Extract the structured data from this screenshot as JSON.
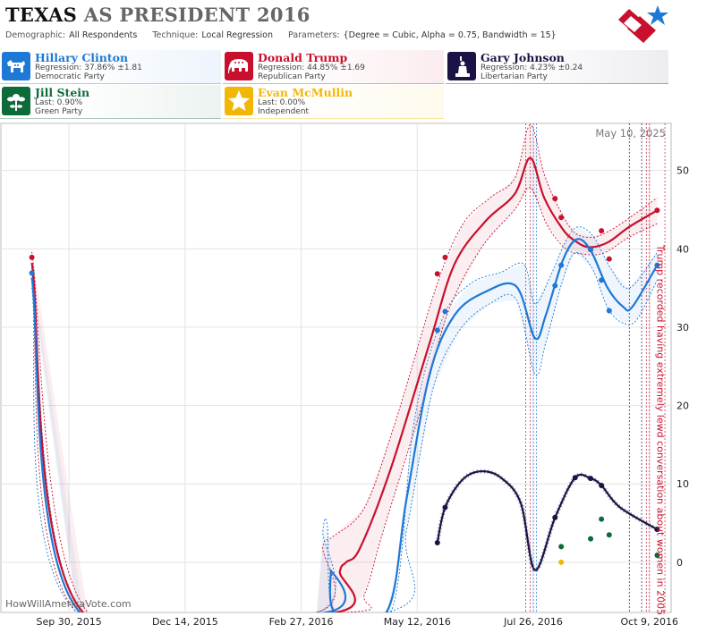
{
  "header": {
    "title_state": "TEXAS",
    "title_rest": "AS PRESIDENT 2016",
    "demographic_label": "Demographic:",
    "demographic_value": "All Respondents",
    "technique_label": "Technique:",
    "technique_value": "Local Regression",
    "parameters_label": "Parameters:",
    "parameters_value": "{Degree = Cubic, Alpha = 0.75, Bandwidth = 15}"
  },
  "candidates": [
    {
      "name": "Hillary Clinton",
      "stat": "Regression: 37.86% ±1.81",
      "party": "Democratic Party",
      "color": "#1e78d6",
      "icon": "donkey-icon"
    },
    {
      "name": "Donald Trump",
      "stat": "Regression: 44.85% ±1.69",
      "party": "Republican Party",
      "color": "#c8102e",
      "icon": "elephant-icon"
    },
    {
      "name": "Gary Johnson",
      "stat": "Regression: 4.23% ±0.24",
      "party": "Libertarian Party",
      "color": "#1a1446",
      "icon": "statue-of-liberty-icon"
    },
    {
      "name": "Jill Stein",
      "stat": "Last: 0.90%",
      "party": "Green Party",
      "color": "#0d6b3a",
      "icon": "flower-icon"
    },
    {
      "name": "Evan McMullin",
      "stat": "Last: 0.00%",
      "party": "Independent",
      "color": "#f2b705",
      "icon": "star-icon"
    }
  ],
  "chart_data": {
    "type": "line",
    "date_label": "May 10, 2025",
    "watermark": "HowWillAmericaVote.com",
    "annotation": "Trump recorded having extremely lewd conversation about women in 2005",
    "annotation_date": "2016-10-07",
    "x_ticks": [
      "Sep 30, 2015",
      "Dec 14, 2015",
      "Feb 27, 2016",
      "May 12, 2016",
      "Jul 26, 2016",
      "Oct 9, 2016"
    ],
    "x_tick_dates": [
      "2015-09-30",
      "2015-12-14",
      "2016-02-27",
      "2016-05-12",
      "2016-07-26",
      "2016-10-09"
    ],
    "y_ticks": [
      0,
      10,
      20,
      30,
      40,
      50
    ],
    "ylim": [
      -6.4,
      56
    ],
    "xlim": [
      "2015-08-17",
      "2016-10-23"
    ],
    "grid": true,
    "vertical_event_lines": [
      {
        "date": "2016-07-21",
        "color": "#c8102e"
      },
      {
        "date": "2016-07-24",
        "color": "#c8102e"
      },
      {
        "date": "2016-07-26",
        "color": "#1e78d6"
      },
      {
        "date": "2016-07-28",
        "color": "#1e78d6"
      },
      {
        "date": "2016-09-26",
        "color": "#1a1446"
      },
      {
        "date": "2016-10-04",
        "color": "#1a1446"
      },
      {
        "date": "2016-10-07",
        "color": "#c8102e"
      },
      {
        "date": "2016-10-09",
        "color": "#c8102e"
      },
      {
        "date": "2016-10-19",
        "color": "#c8102e"
      }
    ],
    "series": [
      {
        "name": "Donald Trump",
        "color": "#c8102e",
        "band": true,
        "points": [
          [
            "2015-09-06",
            38.9
          ],
          [
            "2016-05-25",
            36.8
          ],
          [
            "2016-05-30",
            38.9
          ],
          [
            "2016-08-09",
            46.4
          ],
          [
            "2016-08-13",
            44.0
          ],
          [
            "2016-09-01",
            39.9
          ],
          [
            "2016-09-08",
            42.3
          ],
          [
            "2016-09-13",
            38.7
          ],
          [
            "2016-10-14",
            44.9
          ]
        ],
        "line": [
          [
            "2015-09-06",
            38.2
          ],
          [
            "2015-10-09",
            -6.4
          ],
          [
            "2016-03-20",
            -6.4
          ],
          [
            "2016-03-23",
            -1.2
          ],
          [
            "2016-03-27",
            0.0
          ],
          [
            "2016-04-05",
            1.8
          ],
          [
            "2016-04-25",
            12.0
          ],
          [
            "2016-05-20",
            28.0
          ],
          [
            "2016-06-05",
            38.0
          ],
          [
            "2016-06-25",
            43.5
          ],
          [
            "2016-07-14",
            47.0
          ],
          [
            "2016-07-24",
            51.6
          ],
          [
            "2016-08-02",
            46.5
          ],
          [
            "2016-08-14",
            42.5
          ],
          [
            "2016-08-22",
            41.0
          ],
          [
            "2016-08-31",
            40.2
          ],
          [
            "2016-09-12",
            40.8
          ],
          [
            "2016-09-26",
            42.8
          ],
          [
            "2016-10-14",
            44.9
          ]
        ],
        "upper": [
          [
            "2015-09-06",
            39.6
          ],
          [
            "2015-10-12",
            -6.4
          ],
          [
            "2016-03-08",
            -6.4
          ],
          [
            "2016-03-12",
            2.0
          ],
          [
            "2016-03-18",
            3.2
          ],
          [
            "2016-04-08",
            7.0
          ],
          [
            "2016-04-28",
            18.0
          ],
          [
            "2016-05-24",
            35.0
          ],
          [
            "2016-06-10",
            43.0
          ],
          [
            "2016-06-28",
            46.5
          ],
          [
            "2016-07-14",
            49.0
          ],
          [
            "2016-07-24",
            55.8
          ],
          [
            "2016-08-02",
            49.5
          ],
          [
            "2016-08-12",
            45.0
          ],
          [
            "2016-08-22",
            42.0
          ],
          [
            "2016-09-03",
            41.5
          ],
          [
            "2016-09-15",
            42.5
          ],
          [
            "2016-09-30",
            44.5
          ],
          [
            "2016-10-14",
            46.5
          ]
        ],
        "lower": [
          [
            "2015-09-06",
            37.0
          ],
          [
            "2015-10-05",
            -6.4
          ],
          [
            "2016-03-27",
            -6.4
          ],
          [
            "2016-04-08",
            -4.0
          ],
          [
            "2016-04-20",
            4.0
          ],
          [
            "2016-05-15",
            20.0
          ],
          [
            "2016-06-01",
            32.0
          ],
          [
            "2016-06-22",
            40.0
          ],
          [
            "2016-07-14",
            45.0
          ],
          [
            "2016-07-24",
            47.8
          ],
          [
            "2016-08-04",
            43.0
          ],
          [
            "2016-08-16",
            40.0
          ],
          [
            "2016-08-28",
            39.3
          ],
          [
            "2016-09-10",
            39.5
          ],
          [
            "2016-09-26",
            41.5
          ],
          [
            "2016-10-14",
            43.2
          ]
        ]
      },
      {
        "name": "Hillary Clinton",
        "color": "#1e78d6",
        "band": true,
        "points": [
          [
            "2015-09-06",
            36.9
          ],
          [
            "2016-05-25",
            29.6
          ],
          [
            "2016-05-30",
            32.0
          ],
          [
            "2016-08-09",
            35.3
          ],
          [
            "2016-08-13",
            37.9
          ],
          [
            "2016-09-01",
            39.9
          ],
          [
            "2016-09-08",
            36.0
          ],
          [
            "2016-09-13",
            32.1
          ],
          [
            "2016-10-14",
            37.9
          ]
        ],
        "line": [
          [
            "2015-09-06",
            36.3
          ],
          [
            "2015-10-07",
            -6.4
          ],
          [
            "2016-03-14",
            -6.4
          ],
          [
            "2016-03-17",
            -1.0
          ],
          [
            "2016-03-20",
            -6.4
          ],
          [
            "2016-04-22",
            -6.4
          ],
          [
            "2016-05-05",
            8.0
          ],
          [
            "2016-05-20",
            24.0
          ],
          [
            "2016-06-05",
            31.5
          ],
          [
            "2016-06-25",
            34.5
          ],
          [
            "2016-07-15",
            35.2
          ],
          [
            "2016-07-27",
            28.6
          ],
          [
            "2016-08-03",
            31.5
          ],
          [
            "2016-08-14",
            38.5
          ],
          [
            "2016-08-23",
            41.2
          ],
          [
            "2016-09-01",
            39.8
          ],
          [
            "2016-09-12",
            35.0
          ],
          [
            "2016-09-22",
            32.6
          ],
          [
            "2016-09-28",
            32.6
          ],
          [
            "2016-10-14",
            37.9
          ]
        ],
        "upper": [
          [
            "2015-09-06",
            37.5
          ],
          [
            "2015-10-09",
            -6.4
          ],
          [
            "2016-03-08",
            -6.4
          ],
          [
            "2016-03-12",
            4.0
          ],
          [
            "2016-03-15",
            4.5
          ],
          [
            "2016-03-20",
            -6.4
          ],
          [
            "2016-04-25",
            -6.4
          ],
          [
            "2016-05-10",
            18.0
          ],
          [
            "2016-05-28",
            31.0
          ],
          [
            "2016-06-15",
            35.5
          ],
          [
            "2016-07-05",
            37.0
          ],
          [
            "2016-07-20",
            38.0
          ],
          [
            "2016-07-27",
            33.0
          ],
          [
            "2016-08-06",
            36.5
          ],
          [
            "2016-08-16",
            41.0
          ],
          [
            "2016-08-24",
            42.8
          ],
          [
            "2016-09-03",
            41.5
          ],
          [
            "2016-09-14",
            37.5
          ],
          [
            "2016-09-26",
            35.0
          ],
          [
            "2016-10-14",
            39.5
          ]
        ],
        "lower": [
          [
            "2015-09-06",
            35.0
          ],
          [
            "2015-10-05",
            -6.4
          ],
          [
            "2016-04-22",
            -6.4
          ],
          [
            "2016-05-05",
            4.0
          ],
          [
            "2016-05-22",
            22.0
          ],
          [
            "2016-06-08",
            29.5
          ],
          [
            "2016-06-28",
            33.0
          ],
          [
            "2016-07-15",
            33.5
          ],
          [
            "2016-07-27",
            24.0
          ],
          [
            "2016-08-03",
            28.0
          ],
          [
            "2016-08-14",
            36.0
          ],
          [
            "2016-08-22",
            39.5
          ],
          [
            "2016-09-02",
            37.5
          ],
          [
            "2016-09-12",
            32.5
          ],
          [
            "2016-09-22",
            30.5
          ],
          [
            "2016-10-01",
            31.0
          ],
          [
            "2016-10-14",
            36.0
          ]
        ]
      },
      {
        "name": "Gary Johnson",
        "color": "#1a1446",
        "band": false,
        "dotted_line": true,
        "points": [
          [
            "2016-05-25",
            2.5
          ],
          [
            "2016-05-30",
            7.0
          ],
          [
            "2016-08-09",
            5.7
          ],
          [
            "2016-08-22",
            10.8
          ],
          [
            "2016-09-01",
            10.7
          ],
          [
            "2016-09-08",
            9.8
          ],
          [
            "2016-10-14",
            4.2
          ]
        ],
        "line": [
          [
            "2016-05-25",
            2.5
          ],
          [
            "2016-05-30",
            7.0
          ],
          [
            "2016-06-10",
            10.5
          ],
          [
            "2016-06-22",
            11.6
          ],
          [
            "2016-07-05",
            10.8
          ],
          [
            "2016-07-18",
            7.5
          ],
          [
            "2016-07-27",
            -1.0
          ],
          [
            "2016-08-09",
            5.7
          ],
          [
            "2016-08-22",
            10.8
          ],
          [
            "2016-09-01",
            10.7
          ],
          [
            "2016-09-08",
            9.8
          ],
          [
            "2016-09-20",
            7.0
          ],
          [
            "2016-10-14",
            4.2
          ]
        ]
      },
      {
        "name": "Jill Stein",
        "color": "#0d6b3a",
        "band": false,
        "points": [
          [
            "2016-08-13",
            2.0
          ],
          [
            "2016-09-01",
            3.0
          ],
          [
            "2016-09-08",
            5.5
          ],
          [
            "2016-09-13",
            3.5
          ],
          [
            "2016-10-14",
            0.9
          ]
        ]
      },
      {
        "name": "Evan McMullin",
        "color": "#f2b705",
        "band": false,
        "points": [
          [
            "2016-08-13",
            0.0
          ]
        ]
      }
    ]
  }
}
